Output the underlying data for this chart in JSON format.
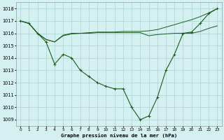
{
  "title": "Graphe pression niveau de la mer (hPa)",
  "background_color": "#d4f0f0",
  "grid_color": "#afd8d8",
  "line_color": "#1a5c1a",
  "x_labels": [
    "0",
    "1",
    "2",
    "3",
    "4",
    "5",
    "6",
    "7",
    "8",
    "9",
    "10",
    "11",
    "12",
    "13",
    "14",
    "15",
    "16",
    "17",
    "18",
    "19",
    "20",
    "21",
    "22",
    "23"
  ],
  "ylim": [
    1008.5,
    1018.5
  ],
  "yticks": [
    1009,
    1010,
    1011,
    1012,
    1013,
    1014,
    1015,
    1016,
    1017,
    1018
  ],
  "series1": [
    1017.0,
    1016.8,
    1016.0,
    1015.3,
    1013.5,
    1014.3,
    1014.0,
    1013.0,
    1012.5,
    1012.0,
    1011.7,
    1011.5,
    1011.5,
    1010.0,
    1009.0,
    1009.3,
    1010.8,
    1013.0,
    1014.3,
    1016.0,
    1016.1,
    1016.8,
    1017.6,
    1018.0
  ],
  "series2": [
    1017.0,
    1016.8,
    1016.0,
    1015.5,
    1015.3,
    1015.8,
    1015.95,
    1016.0,
    1016.0,
    1016.05,
    1016.05,
    1016.05,
    1016.05,
    1016.05,
    1016.05,
    1015.8,
    1015.9,
    1015.95,
    1016.0,
    1016.0,
    1016.0,
    1016.15,
    1016.4,
    1016.6
  ],
  "series3": [
    1017.0,
    1016.8,
    1016.0,
    1015.5,
    1015.3,
    1015.85,
    1016.0,
    1016.0,
    1016.05,
    1016.1,
    1016.1,
    1016.1,
    1016.15,
    1016.15,
    1016.15,
    1016.2,
    1016.3,
    1016.5,
    1016.7,
    1016.9,
    1017.1,
    1017.35,
    1017.65,
    1018.0
  ],
  "figsize": [
    3.2,
    2.0
  ],
  "dpi": 100
}
